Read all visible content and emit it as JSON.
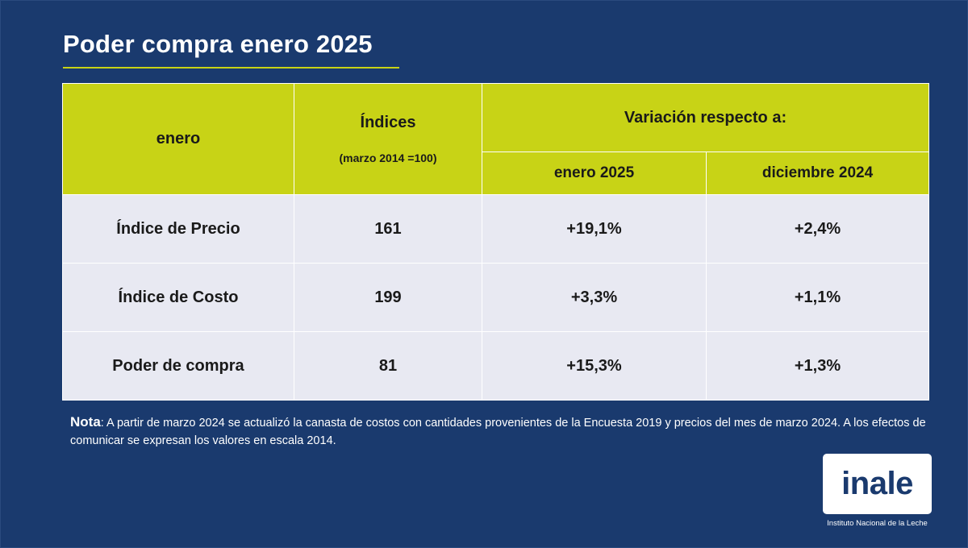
{
  "title": "Poder compra enero 2025",
  "table": {
    "col1_header": "enero",
    "indices_header": "Índices",
    "indices_sub": "(marzo 2014 =100)",
    "variation_header": "Variación respecto a:",
    "var_col1": "enero 2025",
    "var_col2": "diciembre 2024",
    "rows": [
      {
        "label": "Índice de Precio",
        "index": "161",
        "var1": "+19,1%",
        "var2": "+2,4%"
      },
      {
        "label": "Índice de Costo",
        "index": "199",
        "var1": "+3,3%",
        "var2": "+1,1%"
      },
      {
        "label": "Poder de compra",
        "index": "81",
        "var1": "+15,3%",
        "var2": "+1,3%"
      }
    ]
  },
  "note": {
    "label": "Nota",
    "text": ": A partir de marzo 2024 se actualizó la canasta de costos con cantidades provenientes de la Encuesta 2019 y precios del mes de marzo 2024. A los efectos de comunicar se expresan los valores en escala 2014."
  },
  "logo": {
    "text": "inale",
    "subtitle": "Instituto Nacional de la Leche"
  },
  "colors": {
    "background": "#1a3a6e",
    "header": "#c8d316",
    "row": "#e8e9f2"
  }
}
